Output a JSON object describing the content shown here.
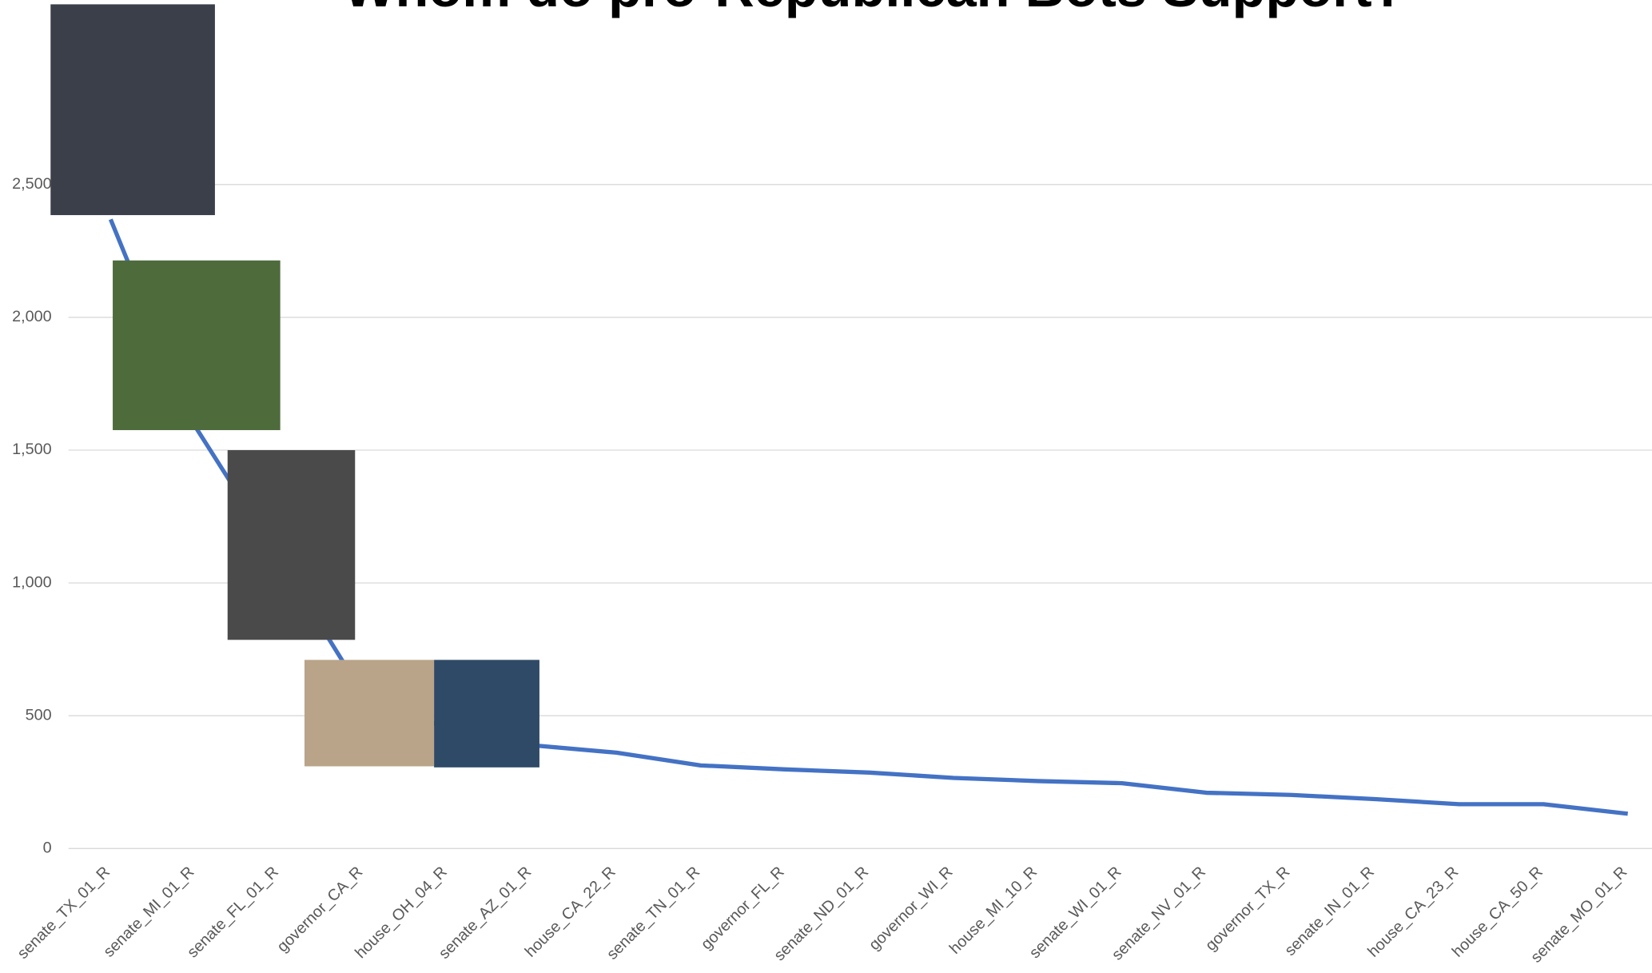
{
  "chart_data": {
    "type": "line",
    "title": "Whom do pro-Republican Bots Support?",
    "categories": [
      "senate_TX_01_R",
      "senate_MI_01_R",
      "senate_FL_01_R",
      "governor_CA_R",
      "house_OH_04_R",
      "senate_AZ_01_R",
      "house_CA_22_R",
      "senate_TN_01_R",
      "governor_FL_R",
      "senate_ND_01_R",
      "governor_WI_R",
      "house_MI_10_R",
      "senate_WI_01_R",
      "senate_NV_01_R",
      "governor_TX_R",
      "senate_IN_01_R",
      "house_CA_23_R",
      "house_CA_50_R",
      "senate_MO_01_R"
    ],
    "values": [
      2369,
      1591,
      1091,
      579,
      450,
      389,
      361,
      313,
      298,
      286,
      266,
      254,
      246,
      210,
      202,
      186,
      167,
      167,
      131
    ],
    "color": "#4472c4",
    "ylim": [
      0,
      3000
    ],
    "yticks": [
      0,
      500,
      {
        "value": 1000,
        "label": "1,000"
      },
      {
        "value": 1500,
        "label": "1,500"
      },
      {
        "value": 2000,
        "label": "2,000"
      },
      {
        "value": 2500,
        "label": "2,500"
      }
    ],
    "grid": true
  }
}
